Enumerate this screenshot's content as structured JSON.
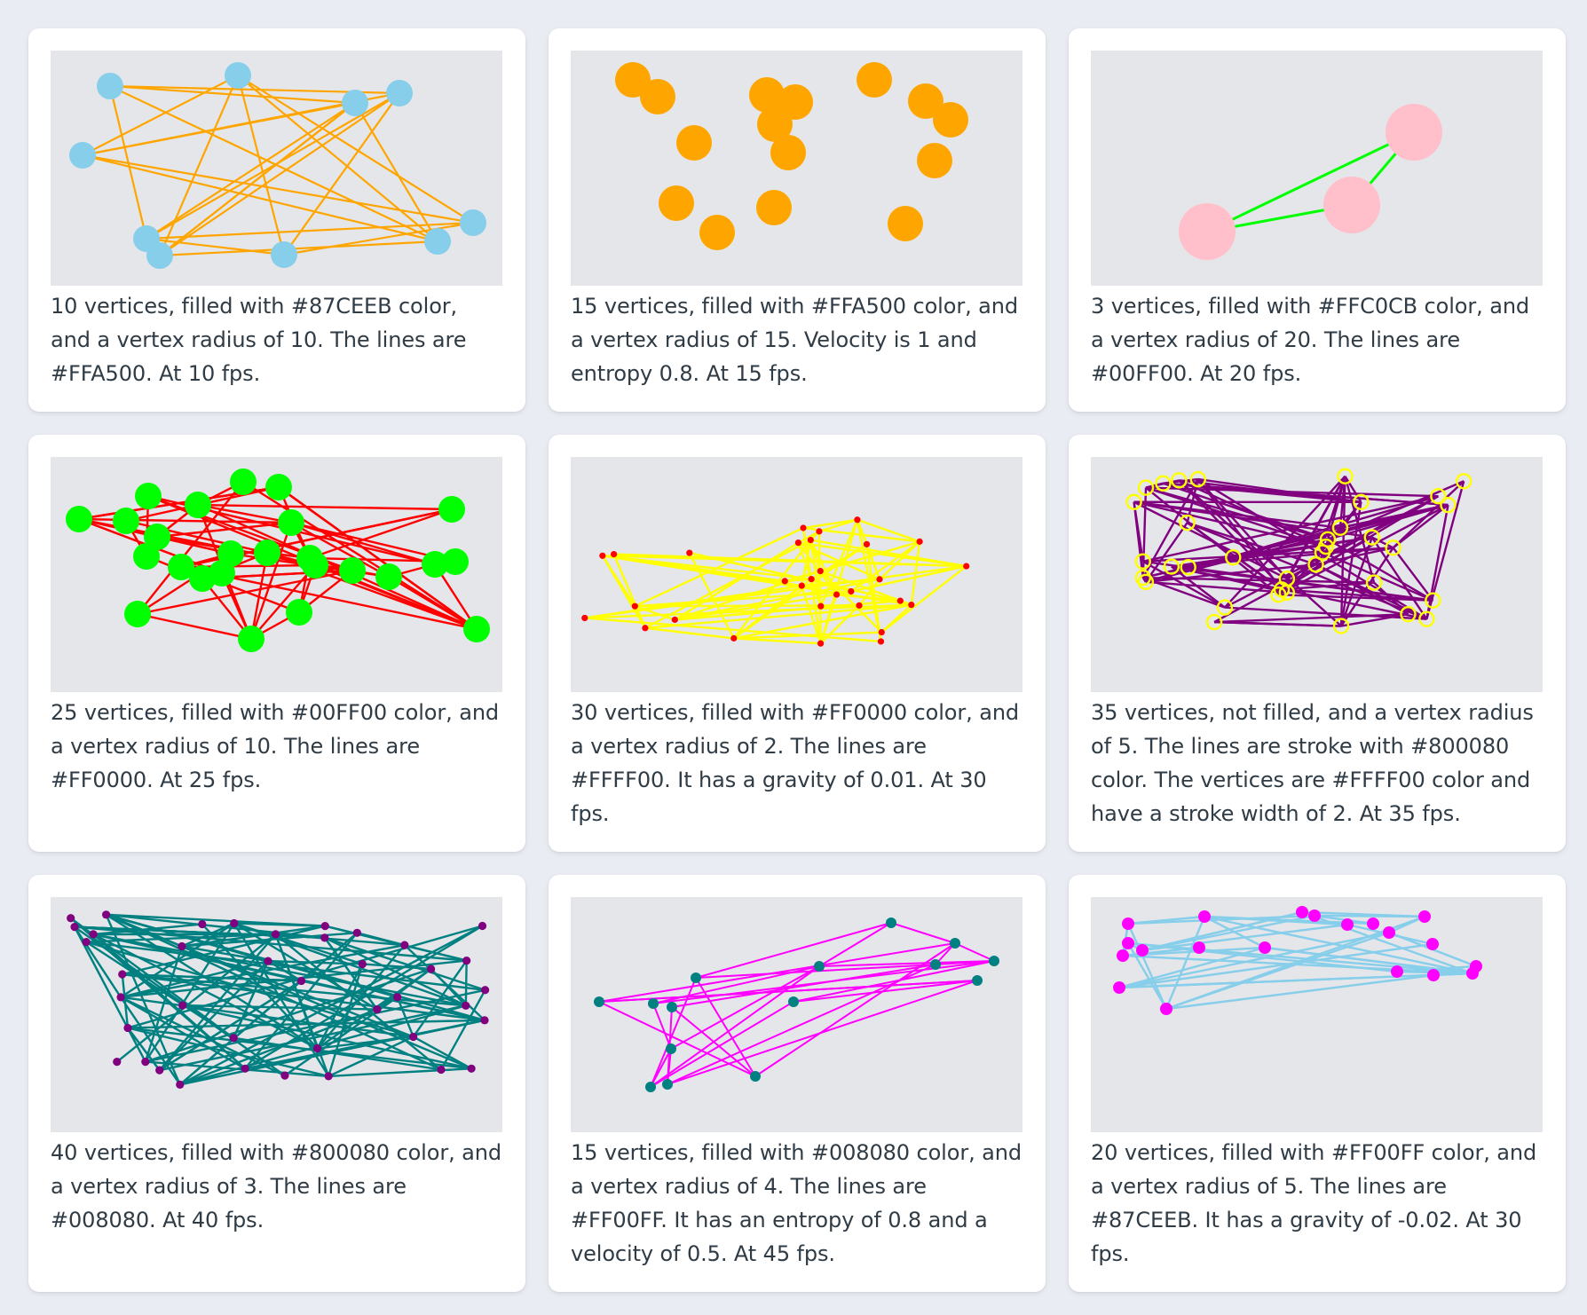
{
  "cards": [
    {
      "caption": "10 vertices, filled with #87CEEB color, and a vertex radius of 10. The lines are #FFA500. At 10 fps.",
      "vertex_fill": "#87CEEB",
      "vertex_stroke": "",
      "line_color": "#FFA500"
    },
    {
      "caption": "15 vertices, filled with #FFA500 color, and a vertex radius of 15. Velocity is 1 and entropy 0.8. At 15 fps.",
      "vertex_fill": "#FFA500",
      "vertex_stroke": "",
      "line_color": ""
    },
    {
      "caption": "3 vertices, filled with #FFC0CB color, and a vertex radius of 20. The lines are #00FF00. At 20 fps.",
      "vertex_fill": "#FFC0CB",
      "vertex_stroke": "",
      "line_color": "#00FF00"
    },
    {
      "caption": "25 vertices, filled with #00FF00 color, and a vertex radius of 10. The lines are #FF0000. At 25 fps.",
      "vertex_fill": "#00FF00",
      "vertex_stroke": "",
      "line_color": "#FF0000"
    },
    {
      "caption": "30 vertices, filled with #FF0000 color, and a vertex radius of 2. The lines are #FFFF00. It has a gravity of 0.01. At 30 fps.",
      "vertex_fill": "#FF0000",
      "vertex_stroke": "",
      "line_color": "#FFFF00"
    },
    {
      "caption": "35 vertices, not filled, and a vertex radius of 5. The lines are stroke with #800080 color. The vertices are #FFFF00 color and have a stroke width of 2. At 35 fps.",
      "vertex_fill": "none",
      "vertex_stroke": "#FFFF00",
      "line_color": "#800080"
    },
    {
      "caption": "40 vertices, filled with #800080 color, and a vertex radius of 3. The lines are #008080. At 40 fps.",
      "vertex_fill": "#800080",
      "vertex_stroke": "",
      "line_color": "#008080"
    },
    {
      "caption": "15 vertices, filled with #008080 color, and a vertex radius of 4. The lines are #FF00FF. It has an entropy of 0.8 and a velocity of 0.5. At 45 fps.",
      "vertex_fill": "#008080",
      "vertex_stroke": "",
      "line_color": "#FF00FF"
    },
    {
      "caption": "20 vertices, filled with #FF00FF color, and a vertex radius of 5. The lines are #87CEEB. It has a gravity of -0.02. At 30 fps.",
      "vertex_fill": "#FF00FF",
      "vertex_stroke": "",
      "line_color": "#87CEEB"
    }
  ]
}
